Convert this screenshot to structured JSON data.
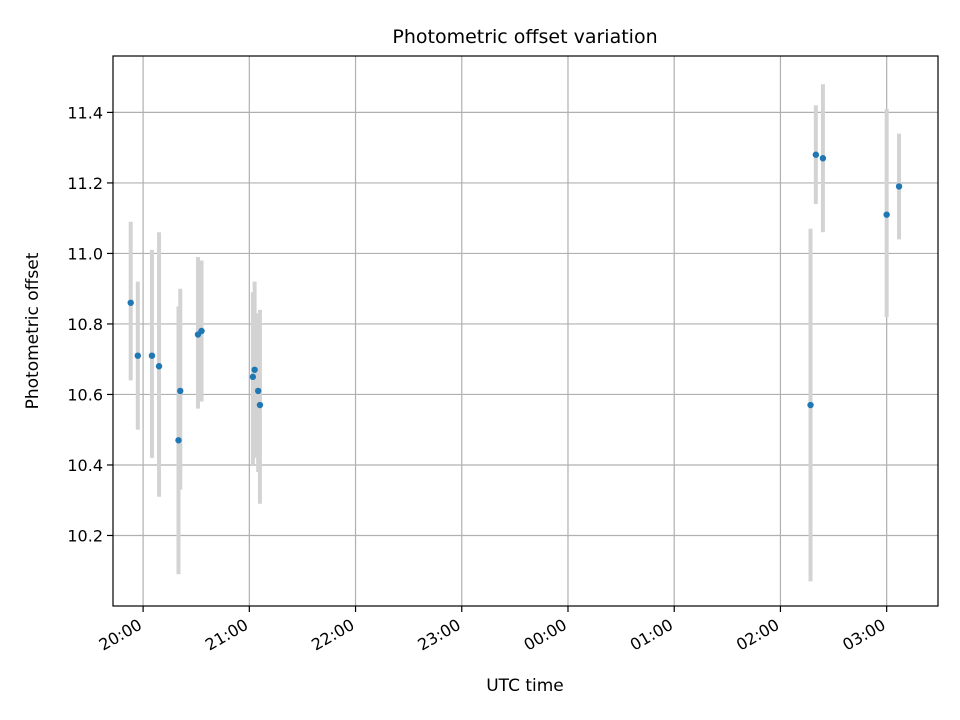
{
  "chart_data": {
    "type": "scatter",
    "title": "Photometric offset variation",
    "xlabel": "UTC time",
    "ylabel": "Photometric offset",
    "grid": true,
    "x_axis": {
      "range": [
        "19:43",
        "03:29"
      ],
      "ticks": [
        "20:00",
        "21:00",
        "22:00",
        "23:00",
        "00:00",
        "01:00",
        "02:00",
        "03:00"
      ]
    },
    "y_axis": {
      "range": [
        10.0,
        11.56
      ],
      "ticks": [
        "10.2",
        "10.4",
        "10.6",
        "10.8",
        "11.0",
        "11.2",
        "11.4"
      ]
    },
    "colors": {
      "marker": "#1f77b4",
      "errorbar": "#d3d3d3",
      "grid": "#b0b0b0"
    },
    "series": [
      {
        "points": [
          {
            "x": "19:53",
            "y": 10.86,
            "low": 10.64,
            "high": 11.09
          },
          {
            "x": "19:57",
            "y": 10.71,
            "low": 10.5,
            "high": 10.92
          },
          {
            "x": "20:05",
            "y": 10.71,
            "low": 10.42,
            "high": 11.01
          },
          {
            "x": "20:09",
            "y": 10.68,
            "low": 10.31,
            "high": 11.06
          },
          {
            "x": "20:20",
            "y": 10.47,
            "low": 10.09,
            "high": 10.85
          },
          {
            "x": "20:21",
            "y": 10.61,
            "low": 10.33,
            "high": 10.9
          },
          {
            "x": "20:31",
            "y": 10.77,
            "low": 10.56,
            "high": 10.99
          },
          {
            "x": "20:33",
            "y": 10.78,
            "low": 10.58,
            "high": 10.98
          },
          {
            "x": "21:02",
            "y": 10.65,
            "low": 10.4,
            "high": 10.89
          },
          {
            "x": "21:03",
            "y": 10.67,
            "low": 10.42,
            "high": 10.92
          },
          {
            "x": "21:05",
            "y": 10.61,
            "low": 10.38,
            "high": 10.83
          },
          {
            "x": "21:06",
            "y": 10.57,
            "low": 10.29,
            "high": 10.84
          },
          {
            "x": "02:17",
            "y": 10.57,
            "low": 10.07,
            "high": 11.07
          },
          {
            "x": "02:20",
            "y": 11.28,
            "low": 11.14,
            "high": 11.42
          },
          {
            "x": "02:24",
            "y": 11.27,
            "low": 11.06,
            "high": 11.48
          },
          {
            "x": "03:00",
            "y": 11.11,
            "low": 10.82,
            "high": 11.41
          },
          {
            "x": "03:07",
            "y": 11.19,
            "low": 11.04,
            "high": 11.34
          }
        ]
      }
    ]
  }
}
